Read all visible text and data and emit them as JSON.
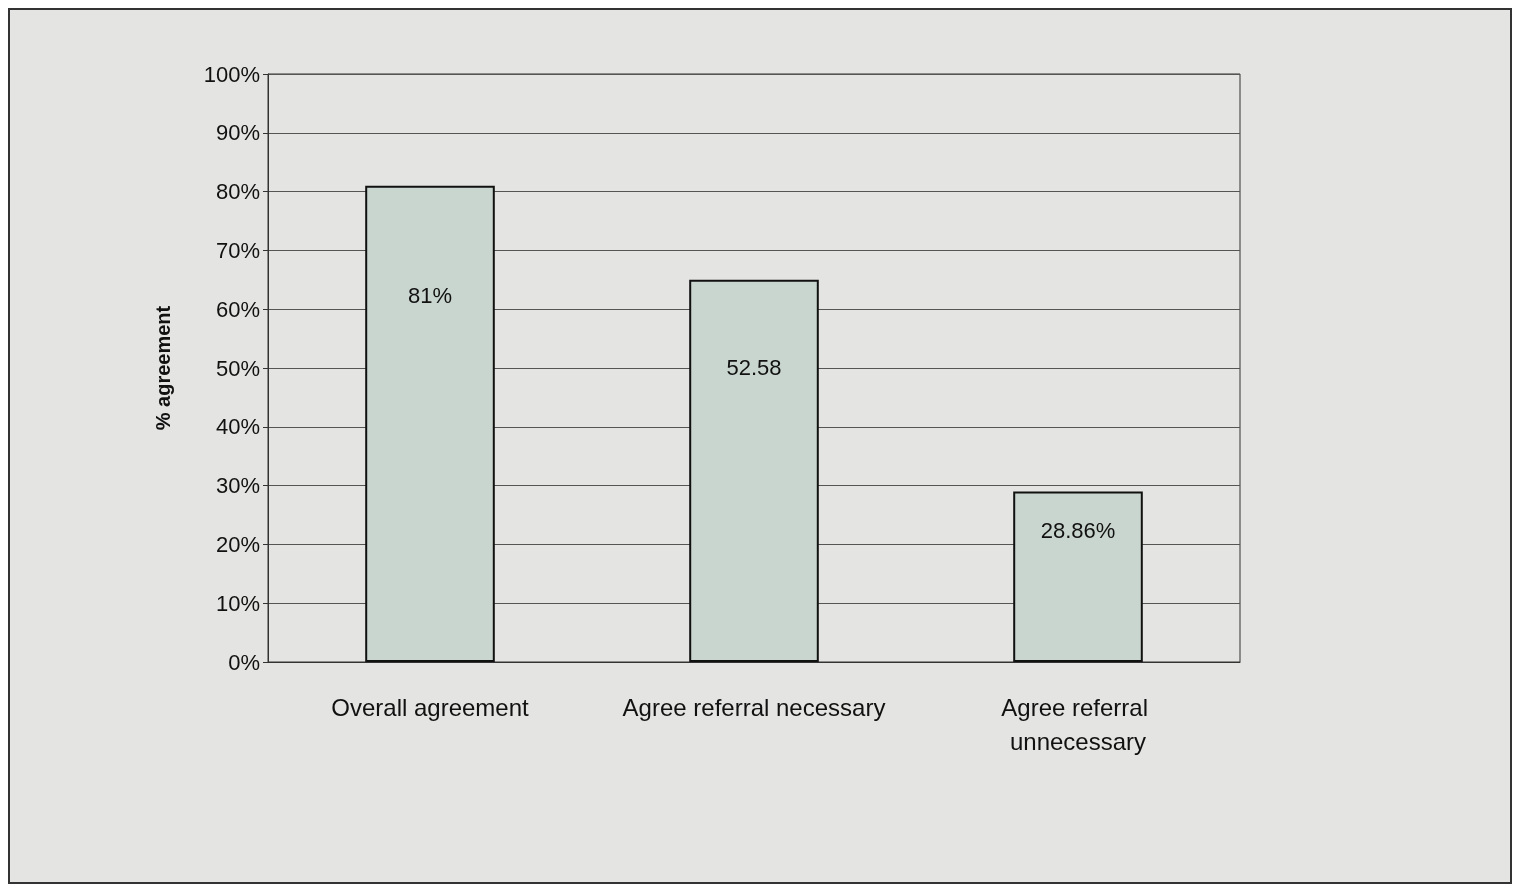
{
  "chart_data": {
    "type": "bar",
    "ylabel": "% agreement",
    "categories": [
      "Overall agreement",
      "Agree referral necessary",
      "Agree referral unnecessary"
    ],
    "values": [
      81,
      65,
      29
    ],
    "annotations": [
      "81%",
      "52.58",
      "28.86%"
    ],
    "color": "#c9d6cf",
    "ylim": [
      0,
      100
    ],
    "yticks": [
      {
        "value": 0,
        "label": "0%"
      },
      {
        "value": 10,
        "label": "10%"
      },
      {
        "value": 20,
        "label": "20%"
      },
      {
        "value": 30,
        "label": "30%"
      },
      {
        "value": 40,
        "label": "40%"
      },
      {
        "value": 50,
        "label": "50%"
      },
      {
        "value": 60,
        "label": "60%"
      },
      {
        "value": 70,
        "label": "70%"
      },
      {
        "value": 80,
        "label": "80%"
      },
      {
        "value": 90,
        "label": "90%"
      },
      {
        "value": 100,
        "label": "100%"
      }
    ],
    "grid": "y"
  }
}
